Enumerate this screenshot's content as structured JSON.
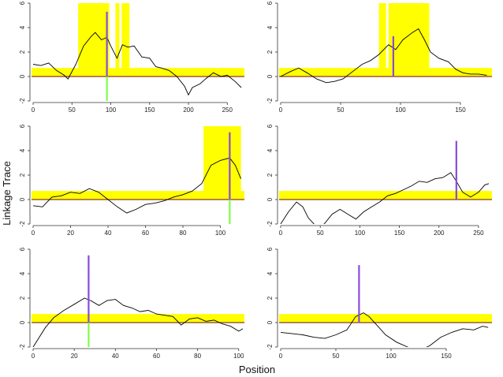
{
  "figure": {
    "xlabel": "Position",
    "ylabel": "Linkage Trace"
  },
  "colors": {
    "band": "#ffff00",
    "trace": "#000000",
    "baseline": "#8b3a1a",
    "peak": "#8a4bd8",
    "peak_low": "#7cff4a",
    "axis": "#333333"
  },
  "chart_data": [
    {
      "type": "line",
      "panel": "top-left",
      "xlim": [
        0,
        270
      ],
      "ylim": [
        -2,
        6
      ],
      "xticks": [
        0,
        50,
        100,
        150,
        200,
        250
      ],
      "yticks": [
        -2,
        0,
        2,
        4,
        6
      ],
      "band": [
        0,
        0.7
      ],
      "blocks": [
        [
          58,
          98
        ],
        [
          106,
          111
        ],
        [
          114,
          124
        ]
      ],
      "peak": {
        "x": 95,
        "top": 5.3,
        "bottom": -2.2
      },
      "trace": [
        [
          0,
          1.0
        ],
        [
          10,
          0.9
        ],
        [
          20,
          1.1
        ],
        [
          30,
          0.5
        ],
        [
          40,
          0.1
        ],
        [
          45,
          -0.2
        ],
        [
          55,
          1.0
        ],
        [
          65,
          2.5
        ],
        [
          75,
          3.3
        ],
        [
          80,
          3.6
        ],
        [
          88,
          3.0
        ],
        [
          95,
          3.2
        ],
        [
          100,
          2.5
        ],
        [
          108,
          1.5
        ],
        [
          115,
          2.6
        ],
        [
          122,
          2.4
        ],
        [
          130,
          2.5
        ],
        [
          140,
          1.6
        ],
        [
          150,
          1.5
        ],
        [
          158,
          0.8
        ],
        [
          165,
          0.7
        ],
        [
          175,
          0.5
        ],
        [
          185,
          0.0
        ],
        [
          195,
          -0.8
        ],
        [
          200,
          -1.5
        ],
        [
          205,
          -0.9
        ],
        [
          215,
          -0.6
        ],
        [
          222,
          -0.2
        ],
        [
          232,
          0.3
        ],
        [
          242,
          0.0
        ],
        [
          250,
          0.1
        ],
        [
          260,
          -0.4
        ],
        [
          268,
          -0.9
        ]
      ]
    },
    {
      "type": "line",
      "panel": "top-right",
      "xlim": [
        0,
        175
      ],
      "ylim": [
        -2,
        6
      ],
      "xticks": [
        0,
        50,
        100,
        150
      ],
      "yticks": [
        -2,
        0,
        2,
        4,
        6
      ],
      "band": [
        0,
        0.7
      ],
      "blocks": [
        [
          82,
          88
        ],
        [
          90,
          124
        ]
      ],
      "peak": {
        "x": 94,
        "top": 3.3,
        "bottom": 0
      },
      "trace": [
        [
          0,
          0.0
        ],
        [
          8,
          0.4
        ],
        [
          15,
          0.7
        ],
        [
          22,
          0.3
        ],
        [
          30,
          -0.2
        ],
        [
          38,
          -0.5
        ],
        [
          45,
          -0.4
        ],
        [
          52,
          -0.2
        ],
        [
          60,
          0.4
        ],
        [
          68,
          1.0
        ],
        [
          75,
          1.3
        ],
        [
          82,
          1.8
        ],
        [
          90,
          2.6
        ],
        [
          96,
          2.2
        ],
        [
          102,
          3.0
        ],
        [
          110,
          3.6
        ],
        [
          115,
          3.9
        ],
        [
          120,
          3.0
        ],
        [
          125,
          2.0
        ],
        [
          132,
          1.5
        ],
        [
          140,
          1.2
        ],
        [
          146,
          0.6
        ],
        [
          152,
          0.3
        ],
        [
          158,
          0.2
        ],
        [
          165,
          0.2
        ],
        [
          172,
          0.1
        ]
      ]
    },
    {
      "type": "line",
      "panel": "middle-left",
      "xlim": [
        0,
        112
      ],
      "ylim": [
        -2,
        6
      ],
      "xticks": [
        0,
        20,
        40,
        60,
        80,
        100
      ],
      "yticks": [
        -2,
        0,
        2,
        4,
        6
      ],
      "band": [
        0,
        0.7
      ],
      "blocks": [
        [
          91,
          111
        ]
      ],
      "peak": {
        "x": 105,
        "top": 5.5,
        "bottom": -2.1
      },
      "trace": [
        [
          0,
          -0.5
        ],
        [
          5,
          -0.6
        ],
        [
          10,
          0.2
        ],
        [
          15,
          0.3
        ],
        [
          20,
          0.6
        ],
        [
          25,
          0.5
        ],
        [
          30,
          0.9
        ],
        [
          35,
          0.6
        ],
        [
          40,
          0.0
        ],
        [
          45,
          -0.6
        ],
        [
          50,
          -1.1
        ],
        [
          55,
          -0.8
        ],
        [
          60,
          -0.4
        ],
        [
          65,
          -0.3
        ],
        [
          70,
          -0.1
        ],
        [
          75,
          0.2
        ],
        [
          80,
          0.4
        ],
        [
          85,
          0.7
        ],
        [
          90,
          1.3
        ],
        [
          95,
          2.8
        ],
        [
          100,
          3.2
        ],
        [
          105,
          3.4
        ],
        [
          108,
          2.8
        ],
        [
          111,
          1.7
        ]
      ]
    },
    {
      "type": "line",
      "panel": "middle-right",
      "xlim": [
        0,
        265
      ],
      "ylim": [
        -2,
        6
      ],
      "xticks": [
        0,
        50,
        100,
        150,
        200,
        250
      ],
      "yticks": [
        -2,
        0,
        2,
        4,
        6
      ],
      "band": [
        0,
        0.7
      ],
      "blocks": [],
      "peak": {
        "x": 222,
        "top": 4.8,
        "bottom": 0
      },
      "trace": [
        [
          0,
          -2.0
        ],
        [
          10,
          -1.0
        ],
        [
          20,
          -0.2
        ],
        [
          28,
          -0.6
        ],
        [
          35,
          -1.5
        ],
        [
          45,
          -2.2
        ],
        [
          55,
          -2.0
        ],
        [
          65,
          -1.2
        ],
        [
          75,
          -0.8
        ],
        [
          85,
          -1.2
        ],
        [
          95,
          -1.6
        ],
        [
          105,
          -1.0
        ],
        [
          115,
          -0.6
        ],
        [
          125,
          -0.2
        ],
        [
          135,
          0.3
        ],
        [
          145,
          0.5
        ],
        [
          155,
          0.8
        ],
        [
          165,
          1.1
        ],
        [
          175,
          1.5
        ],
        [
          185,
          1.4
        ],
        [
          195,
          1.7
        ],
        [
          205,
          1.8
        ],
        [
          215,
          2.2
        ],
        [
          222,
          1.5
        ],
        [
          230,
          0.6
        ],
        [
          240,
          0.2
        ],
        [
          250,
          0.6
        ],
        [
          258,
          1.2
        ],
        [
          263,
          1.3
        ]
      ]
    },
    {
      "type": "line",
      "panel": "bottom-left",
      "xlim": [
        0,
        102
      ],
      "ylim": [
        -2,
        6
      ],
      "xticks": [
        0,
        20,
        40,
        60,
        80,
        100
      ],
      "yticks": [
        -2,
        0,
        2,
        4,
        6
      ],
      "band": [
        0,
        0.7
      ],
      "blocks": [],
      "peak": {
        "x": 27,
        "top": 5.5,
        "bottom": -2.1
      },
      "trace": [
        [
          0,
          -2.0
        ],
        [
          3,
          -1.2
        ],
        [
          6,
          -0.4
        ],
        [
          10,
          0.4
        ],
        [
          15,
          1.0
        ],
        [
          20,
          1.5
        ],
        [
          25,
          2.0
        ],
        [
          28,
          1.8
        ],
        [
          32,
          1.4
        ],
        [
          36,
          1.8
        ],
        [
          40,
          1.9
        ],
        [
          44,
          1.4
        ],
        [
          48,
          1.2
        ],
        [
          52,
          0.9
        ],
        [
          56,
          1.0
        ],
        [
          60,
          0.7
        ],
        [
          64,
          0.6
        ],
        [
          68,
          0.5
        ],
        [
          72,
          -0.2
        ],
        [
          76,
          0.3
        ],
        [
          80,
          0.4
        ],
        [
          84,
          0.1
        ],
        [
          88,
          0.2
        ],
        [
          92,
          -0.1
        ],
        [
          96,
          -0.3
        ],
        [
          100,
          -0.7
        ],
        [
          102,
          -0.5
        ]
      ]
    },
    {
      "type": "line",
      "panel": "bottom-right",
      "xlim": [
        0,
        190
      ],
      "ylim": [
        -2,
        6
      ],
      "xticks": [
        0,
        50,
        100,
        150
      ],
      "yticks": [
        -2,
        0,
        2,
        4,
        6
      ],
      "band": [
        0,
        0.7
      ],
      "blocks": [],
      "peak": {
        "x": 71,
        "top": 4.7,
        "bottom": 0
      },
      "trace": [
        [
          0,
          -0.8
        ],
        [
          10,
          -0.9
        ],
        [
          20,
          -1.0
        ],
        [
          30,
          -1.2
        ],
        [
          40,
          -1.3
        ],
        [
          50,
          -1.0
        ],
        [
          60,
          -0.6
        ],
        [
          68,
          0.5
        ],
        [
          75,
          0.8
        ],
        [
          80,
          0.5
        ],
        [
          88,
          -0.3
        ],
        [
          95,
          -1.0
        ],
        [
          105,
          -1.6
        ],
        [
          115,
          -2.0
        ],
        [
          125,
          -2.3
        ],
        [
          135,
          -1.9
        ],
        [
          145,
          -1.2
        ],
        [
          155,
          -0.8
        ],
        [
          165,
          -0.5
        ],
        [
          175,
          -0.6
        ],
        [
          183,
          -0.3
        ],
        [
          188,
          -0.4
        ]
      ]
    }
  ]
}
